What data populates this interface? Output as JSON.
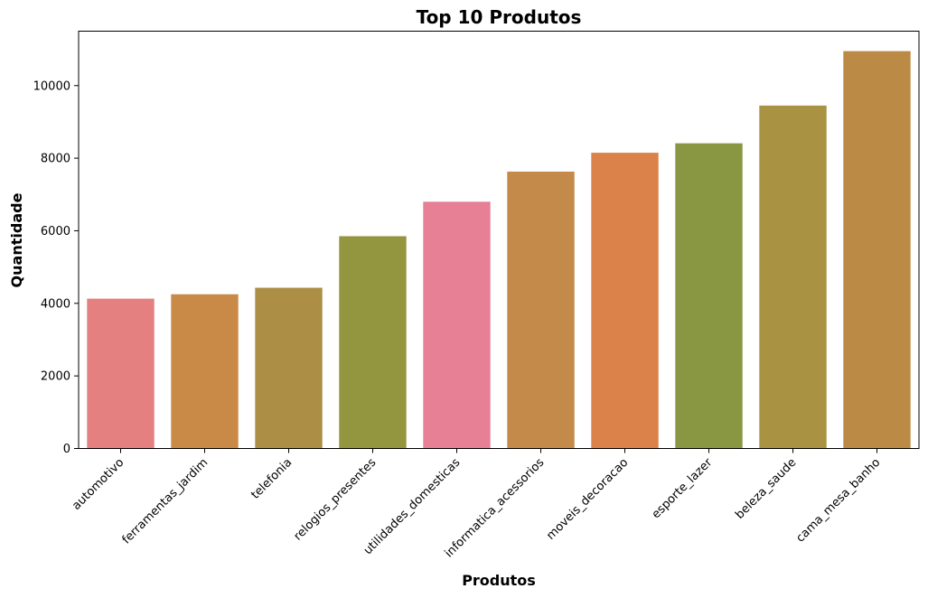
{
  "chart_data": {
    "type": "bar",
    "title": "Top 10 Produtos",
    "xlabel": "Produtos",
    "ylabel": "Quantidade",
    "categories": [
      "automotivo",
      "ferramentas_jardim",
      "telefonia",
      "relogios_presentes",
      "utilidades_domesticas",
      "informatica_acessorios",
      "moveis_decoracao",
      "esporte_lazer",
      "beleza_saude",
      "cama_mesa_banho"
    ],
    "values": [
      4130,
      4250,
      4430,
      5850,
      6800,
      7630,
      8150,
      8410,
      9450,
      10950
    ],
    "colors": [
      "#e58080",
      "#c98a48",
      "#ac8f45",
      "#94953f",
      "#e78095",
      "#c48a49",
      "#da824a",
      "#8a9742",
      "#a99241",
      "#bb8b45"
    ],
    "ylim": [
      0,
      11500
    ],
    "yticks": [
      0,
      2000,
      4000,
      6000,
      8000,
      10000
    ],
    "grid": false,
    "legend": false
  }
}
